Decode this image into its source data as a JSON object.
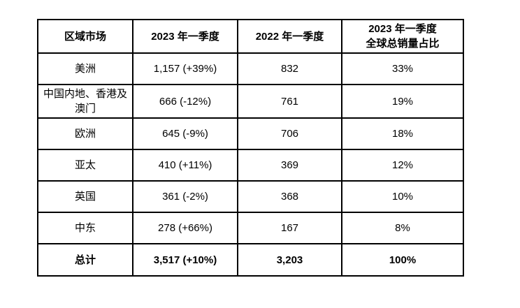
{
  "table": {
    "headers": {
      "region": "区域市场",
      "q1_2023": "2023 年一季度",
      "q1_2022": "2022 年一季度",
      "share": "2023 年一季度\n全球总销量占比"
    },
    "rows": [
      {
        "region": "美洲",
        "q1_2023": "1,157 (+39%)",
        "q1_2022": "832",
        "share": "33%"
      },
      {
        "region": "中国内地、香港及澳门",
        "q1_2023": "666 (-12%)",
        "q1_2022": "761",
        "share": "19%"
      },
      {
        "region": "欧洲",
        "q1_2023": "645 (-9%)",
        "q1_2022": "706",
        "share": "18%"
      },
      {
        "region": "亚太",
        "q1_2023": "410 (+11%)",
        "q1_2022": "369",
        "share": "12%"
      },
      {
        "region": "英国",
        "q1_2023": "361 (-2%)",
        "q1_2022": "368",
        "share": "10%"
      },
      {
        "region": "中东",
        "q1_2023": "278 (+66%)",
        "q1_2022": "167",
        "share": "8%"
      }
    ],
    "total": {
      "region": "总计",
      "q1_2023": "3,517 (+10%)",
      "q1_2022": "3,203",
      "share": "100%"
    }
  },
  "chart_data": {
    "type": "table",
    "columns": [
      "区域市场",
      "2023 年一季度",
      "2022 年一季度",
      "2023 年一季度 全球总销量占比"
    ],
    "rows": [
      [
        "美洲",
        "1,157 (+39%)",
        "832",
        "33%"
      ],
      [
        "中国内地、香港及澳门",
        "666 (-12%)",
        "761",
        "19%"
      ],
      [
        "欧洲",
        "645 (-9%)",
        "706",
        "18%"
      ],
      [
        "亚太",
        "410 (+11%)",
        "369",
        "12%"
      ],
      [
        "英国",
        "361 (-2%)",
        "368",
        "10%"
      ],
      [
        "中东",
        "278 (+66%)",
        "167",
        "8%"
      ],
      [
        "总计",
        "3,517 (+10%)",
        "3,203",
        "100%"
      ]
    ]
  },
  "colors": {
    "border": "#000000",
    "text": "#000000",
    "background": "#ffffff"
  }
}
